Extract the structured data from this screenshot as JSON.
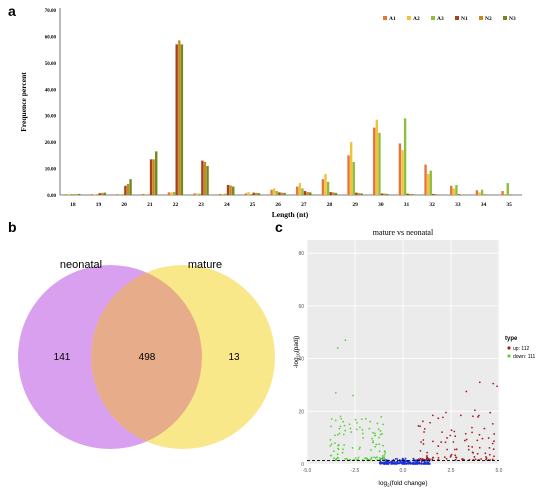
{
  "panels": {
    "a": "a",
    "b": "b",
    "c": "c"
  },
  "colors": {
    "A1": "#e8743b",
    "A2": "#f3c23b",
    "A3": "#8fbf3a",
    "N1": "#a5421f",
    "N2": "#c98a1a",
    "N3": "#6e8a21",
    "neonatal": "#d9a0ef",
    "mature": "#f8e88a",
    "overlap": "#e7ac8a",
    "volcano_up": "#a3201f",
    "volcano_down": "#58d236",
    "volcano_ns": "#1a2fd6",
    "volcano_bg": "#ebebeb"
  },
  "chart_data": [
    {
      "type": "bar",
      "title": "",
      "xlabel": "Length (nt)",
      "ylabel": "Frequence percent",
      "ylim": [
        0,
        70
      ],
      "yticks": [
        "0.00",
        "10.00",
        "20.00",
        "30.00",
        "40.00",
        "50.00",
        "60.00",
        "70.00"
      ],
      "categories": [
        "18",
        "19",
        "20",
        "21",
        "22",
        "23",
        "24",
        "25",
        "26",
        "27",
        "28",
        "29",
        "30",
        "31",
        "32",
        "33",
        "34",
        "35"
      ],
      "legend_position": "top-right",
      "series": [
        {
          "name": "A1",
          "values": [
            0.3,
            0.3,
            0.3,
            0.4,
            1.0,
            0.6,
            0.4,
            0.6,
            2.0,
            3.2,
            6.0,
            15.0,
            25.5,
            19.5,
            11.5,
            3.5,
            1.8,
            1.5
          ]
        },
        {
          "name": "A2",
          "values": [
            0.3,
            0.2,
            0.3,
            0.3,
            1.0,
            0.6,
            0.4,
            1.1,
            2.5,
            4.5,
            8.0,
            20.0,
            28.5,
            17.0,
            8.0,
            2.5,
            1.0,
            0.4
          ]
        },
        {
          "name": "A3",
          "values": [
            0.4,
            0.3,
            0.3,
            0.3,
            1.1,
            0.5,
            0.5,
            0.4,
            1.5,
            2.5,
            5.0,
            12.5,
            23.5,
            29.0,
            9.2,
            3.8,
            2.0,
            4.5
          ]
        },
        {
          "name": "N1",
          "values": [
            0.2,
            0.7,
            3.5,
            13.5,
            57.0,
            13.0,
            3.8,
            0.9,
            1.0,
            1.5,
            1.1,
            0.9,
            0.6,
            0.5,
            0.4,
            0.3,
            0.2,
            0.2
          ]
        },
        {
          "name": "N2",
          "values": [
            0.3,
            0.8,
            4.2,
            13.5,
            58.5,
            12.5,
            3.6,
            0.8,
            0.9,
            1.1,
            1.0,
            0.7,
            0.5,
            0.4,
            0.3,
            0.2,
            0.2,
            0.1
          ]
        },
        {
          "name": "N3",
          "values": [
            0.4,
            0.9,
            6.0,
            16.5,
            57.0,
            11.0,
            3.2,
            0.7,
            0.8,
            1.0,
            0.8,
            0.6,
            0.4,
            0.3,
            0.2,
            0.2,
            0.1,
            0.1
          ]
        }
      ]
    },
    {
      "type": "venn",
      "sets": [
        {
          "name": "neonatal",
          "only": 141
        },
        {
          "name": "mature",
          "only": 13
        }
      ],
      "overlap": 498
    },
    {
      "type": "scatter",
      "title": "mature vs neonatal",
      "xlabel": "log2(fold change)",
      "ylabel": "-log10(padj)",
      "xlim": [
        -5.0,
        5.0
      ],
      "ylim": [
        0,
        85
      ],
      "xticks": [
        "-5.0",
        "-2.5",
        "0.0",
        "2.5",
        "5.0"
      ],
      "yticks": [
        "0",
        "20",
        "40",
        "60",
        "80"
      ],
      "threshold_y": 1.3,
      "legend_title": "type",
      "legend_position": "right",
      "legend": [
        {
          "label": "up: 112",
          "color": "#a3201f"
        },
        {
          "label": "down: 111",
          "color": "#58d236"
        }
      ],
      "outliers": [
        {
          "x": -3.0,
          "y": 47,
          "type": "down"
        },
        {
          "x": -3.4,
          "y": 44,
          "type": "down"
        },
        {
          "x": 4.0,
          "y": 31,
          "type": "up"
        },
        {
          "x": 4.7,
          "y": 30.5,
          "type": "up"
        },
        {
          "x": 4.9,
          "y": 29.5,
          "type": "up"
        },
        {
          "x": -3.5,
          "y": 27,
          "type": "down"
        },
        {
          "x": -2.6,
          "y": 26,
          "type": "down"
        },
        {
          "x": 3.3,
          "y": 27.5,
          "type": "up"
        }
      ]
    }
  ]
}
